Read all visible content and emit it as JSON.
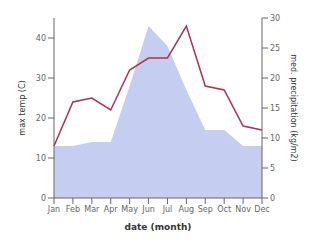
{
  "chart_data": {
    "type": "line",
    "categories": [
      "Jan",
      "Feb",
      "Mar",
      "Apr",
      "May",
      "Jun",
      "Jul",
      "Aug",
      "Sep",
      "Oct",
      "Nov",
      "Dec"
    ],
    "series": [
      {
        "type": "area",
        "color": "#c5cef0",
        "values": [
          13,
          13,
          14,
          14,
          28,
          43,
          38,
          27,
          17,
          17,
          13,
          13
        ]
      },
      {
        "type": "line",
        "color": "#b03050",
        "values": [
          13,
          24,
          25,
          22,
          32,
          35,
          35,
          43,
          28,
          27,
          18,
          17
        ]
      }
    ],
    "xlabel": "date (month)",
    "ylabel": "max temp (C)",
    "y2label": "med. precipitation (kg/m2)",
    "ylim": [
      0,
      45
    ],
    "yticks": [
      0,
      10,
      20,
      30,
      40
    ],
    "y2lim": [
      0,
      30
    ],
    "y2ticks": [
      0,
      5,
      10,
      15,
      20,
      25,
      30
    ]
  }
}
